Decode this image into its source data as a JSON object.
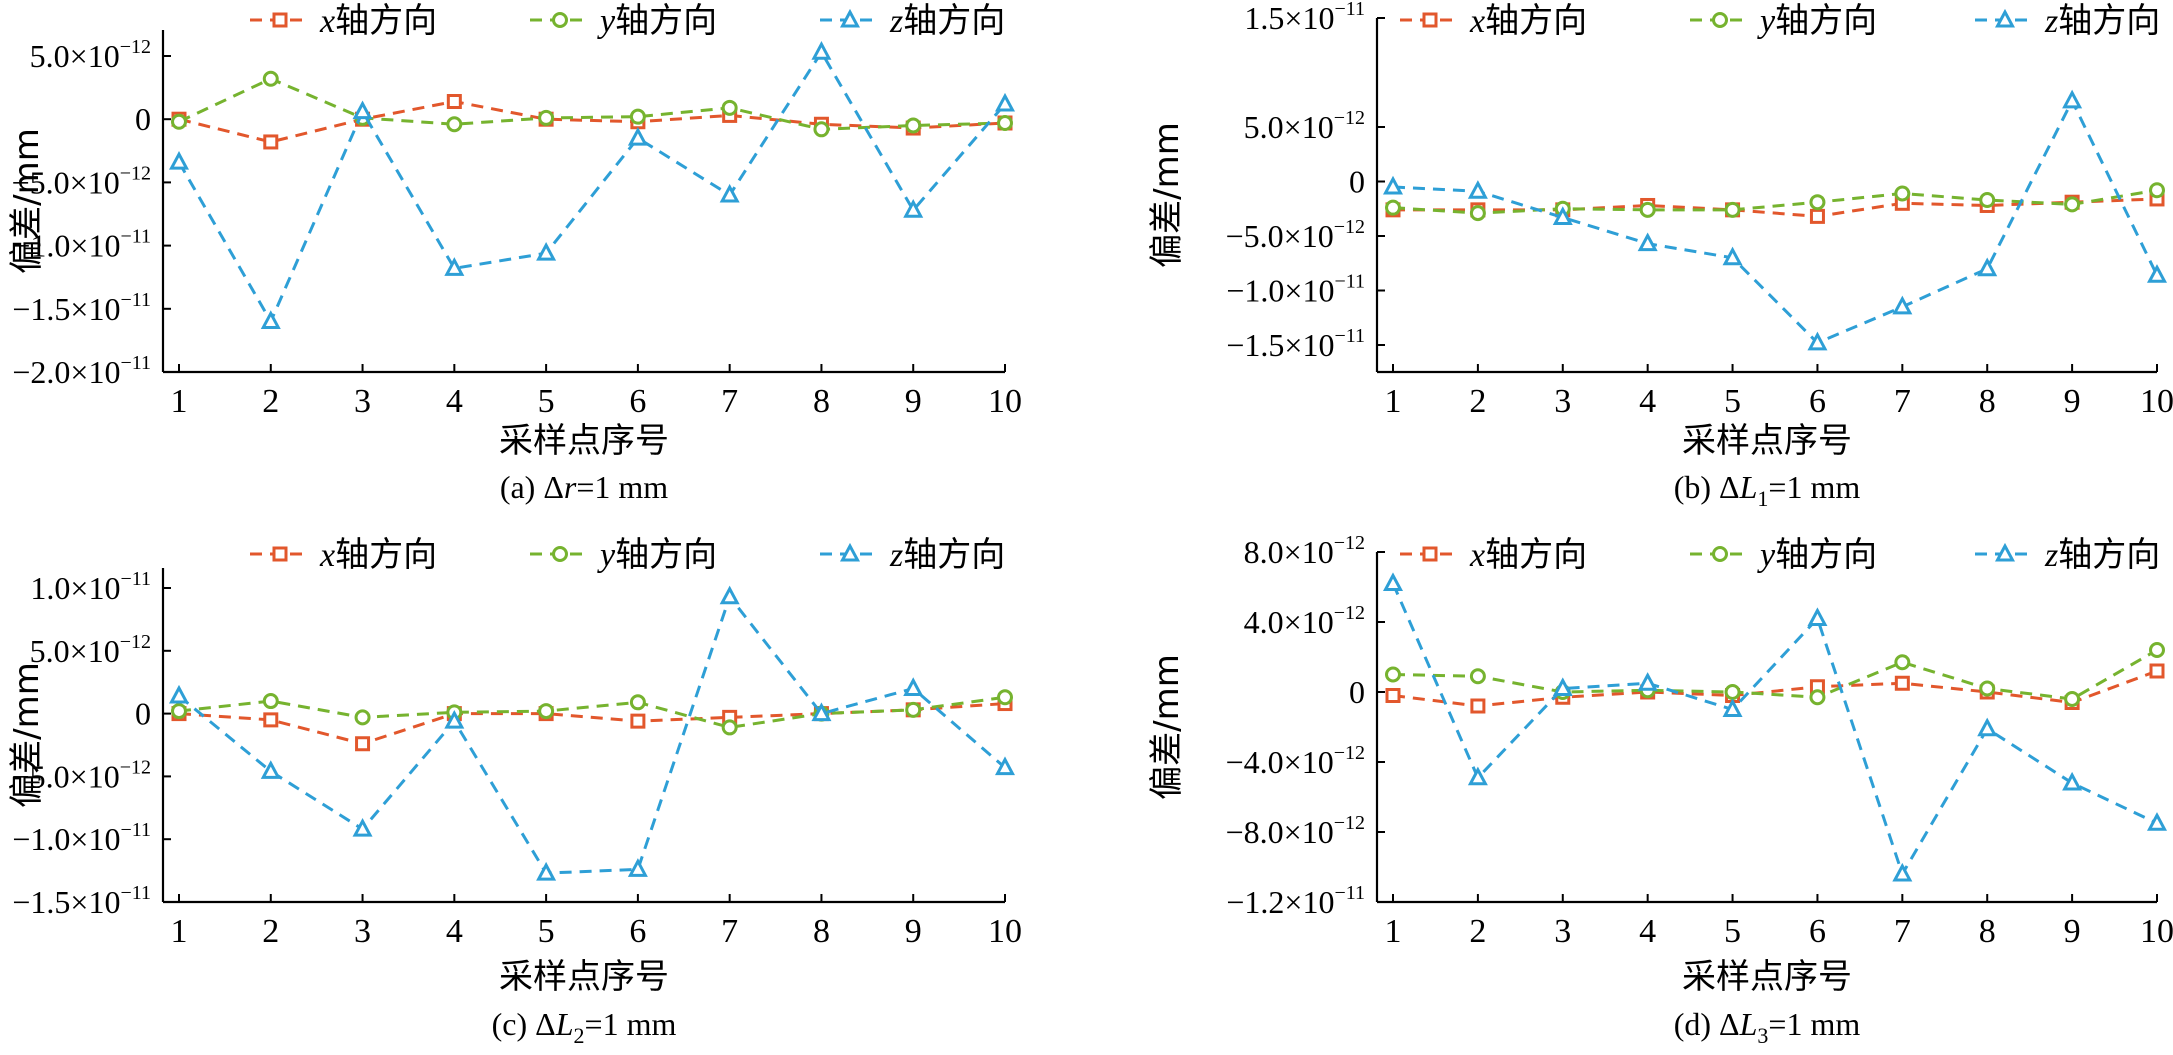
{
  "chart_data": [
    {
      "type": "line",
      "caption": "(a) Δr=1 mm",
      "xlabel": "采样点序号",
      "ylabel": "偏差/mm",
      "categories": [
        "1",
        "2",
        "3",
        "4",
        "5",
        "6",
        "7",
        "8",
        "9",
        "10"
      ],
      "yticks": [
        {
          "value": 5e-12,
          "label": "5.0×10",
          "exp": "−12"
        },
        {
          "value": 0,
          "label": "0",
          "exp": ""
        },
        {
          "value": -5e-12,
          "label": "−5.0×10",
          "exp": "−12"
        },
        {
          "value": -1e-11,
          "label": "−1.0×10",
          "exp": "−11"
        },
        {
          "value": -1.5e-11,
          "label": "−1.5×10",
          "exp": "−11"
        },
        {
          "value": -2e-11,
          "label": "−2.0×10",
          "exp": "−11"
        }
      ],
      "ylim": [
        -2e-11,
        7e-12
      ],
      "series": [
        {
          "name": "x轴方向",
          "var": "x",
          "text": "轴方向",
          "color": "#e2572c",
          "marker": "square",
          "values": [
            0,
            -1.8e-12,
            0,
            1.4e-12,
            0,
            -2e-13,
            3e-13,
            -4e-13,
            -7e-13,
            -3e-13
          ]
        },
        {
          "name": "y轴方向",
          "var": "y",
          "text": "轴方向",
          "color": "#76b32f",
          "marker": "circle",
          "values": [
            -2e-13,
            3.2e-12,
            1e-13,
            -4e-13,
            1e-13,
            2e-13,
            9e-13,
            -8e-13,
            -5e-13,
            -3e-13
          ]
        },
        {
          "name": "z轴方向",
          "var": "z",
          "text": "轴方向",
          "color": "#2e9fd6",
          "marker": "triangle",
          "values": [
            -3.4e-12,
            -1.6e-11,
            6e-13,
            -1.18e-11,
            -1.06e-11,
            -1.5e-12,
            -6e-12,
            5.3e-12,
            -7.2e-12,
            1.2e-12
          ]
        }
      ]
    },
    {
      "type": "line",
      "caption": "(b) ΔL1=1 mm",
      "xlabel": "采样点序号",
      "ylabel": "偏差/mm",
      "categories": [
        "1",
        "2",
        "3",
        "4",
        "5",
        "6",
        "7",
        "8",
        "9",
        "10"
      ],
      "yticks": [
        {
          "value": 1.5e-11,
          "label": "1.5×10",
          "exp": "−11"
        },
        {
          "value": 5e-12,
          "label": "5.0×10",
          "exp": "−12"
        },
        {
          "value": 0,
          "label": "0",
          "exp": ""
        },
        {
          "value": -5e-12,
          "label": "−5.0×10",
          "exp": "−12"
        },
        {
          "value": -1e-11,
          "label": "−1.0×10",
          "exp": "−11"
        },
        {
          "value": -1.5e-11,
          "label": "−1.5×10",
          "exp": "−11"
        }
      ],
      "ylim": [
        -1.7e-11,
        1.5e-11
      ],
      "series": [
        {
          "name": "x轴方向",
          "var": "x",
          "text": "轴方向",
          "color": "#e2572c",
          "marker": "square",
          "values": [
            -2.6e-12,
            -2.6e-12,
            -2.6e-12,
            -2.2e-12,
            -2.6e-12,
            -3.2e-12,
            -2e-12,
            -2.2e-12,
            -1.9e-12,
            -1.6e-12
          ]
        },
        {
          "name": "y轴方向",
          "var": "y",
          "text": "轴方向",
          "color": "#76b32f",
          "marker": "circle",
          "values": [
            -2.4e-12,
            -2.9e-12,
            -2.5e-12,
            -2.6e-12,
            -2.6e-12,
            -1.9e-12,
            -1.1e-12,
            -1.7e-12,
            -2.1e-12,
            -8e-13
          ]
        },
        {
          "name": "z轴方向",
          "var": "z",
          "text": "轴方向",
          "color": "#2e9fd6",
          "marker": "triangle",
          "values": [
            -5e-13,
            -9e-13,
            -3.3e-12,
            -5.7e-12,
            -7e-12,
            -1.48e-11,
            -1.15e-11,
            -8e-12,
            7.4e-12,
            -8.6e-12
          ]
        }
      ]
    },
    {
      "type": "line",
      "caption": "(c) ΔL2=1 mm",
      "xlabel": "采样点序号",
      "ylabel": "偏差/mm",
      "categories": [
        "1",
        "2",
        "3",
        "4",
        "5",
        "6",
        "7",
        "8",
        "9",
        "10"
      ],
      "yticks": [
        {
          "value": 1e-11,
          "label": "1.0×10",
          "exp": "−11"
        },
        {
          "value": 5e-12,
          "label": "5.0×10",
          "exp": "−12"
        },
        {
          "value": 0,
          "label": "0",
          "exp": ""
        },
        {
          "value": -5e-12,
          "label": "−5.0×10",
          "exp": "−12"
        },
        {
          "value": -1e-11,
          "label": "−1.0×10",
          "exp": "−11"
        },
        {
          "value": -1.5e-11,
          "label": "−1.5×10",
          "exp": "−11"
        }
      ],
      "ylim": [
        -1.5e-11,
        1.2e-11
      ],
      "series": [
        {
          "name": "x轴方向",
          "var": "x",
          "text": "轴方向",
          "color": "#e2572c",
          "marker": "square",
          "values": [
            0,
            -5e-13,
            -2.4e-12,
            0,
            0,
            -6e-13,
            -3e-13,
            0,
            3e-13,
            8e-13
          ]
        },
        {
          "name": "y轴方向",
          "var": "y",
          "text": "轴方向",
          "color": "#76b32f",
          "marker": "circle",
          "values": [
            2e-13,
            1e-12,
            -3e-13,
            1e-13,
            2e-13,
            9e-13,
            -1.1e-12,
            0,
            3e-13,
            1.3e-12
          ]
        },
        {
          "name": "z轴方向",
          "var": "z",
          "text": "轴方向",
          "color": "#2e9fd6",
          "marker": "triangle",
          "values": [
            1.4e-12,
            -4.6e-12,
            -9.2e-12,
            -6e-13,
            -1.27e-11,
            -1.24e-11,
            9.3e-12,
            0,
            2e-12,
            -4.3e-12
          ]
        }
      ]
    },
    {
      "type": "line",
      "caption": "(d) ΔL3=1 mm",
      "xlabel": "采样点序号",
      "ylabel": "偏差/mm",
      "categories": [
        "1",
        "2",
        "3",
        "4",
        "5",
        "6",
        "7",
        "8",
        "9",
        "10"
      ],
      "yticks": [
        {
          "value": 8e-12,
          "label": "8.0×10",
          "exp": "−12"
        },
        {
          "value": 4e-12,
          "label": "4.0×10",
          "exp": "−12"
        },
        {
          "value": 0,
          "label": "0",
          "exp": ""
        },
        {
          "value": -4e-12,
          "label": "−4.0×10",
          "exp": "−12"
        },
        {
          "value": -8e-12,
          "label": "−8.0×10",
          "exp": "−12"
        },
        {
          "value": -1.2e-11,
          "label": "−1.2×10",
          "exp": "−11"
        }
      ],
      "ylim": [
        -1.2e-11,
        8e-12
      ],
      "series": [
        {
          "name": "x轴方向",
          "var": "x",
          "text": "轴方向",
          "color": "#e2572c",
          "marker": "square",
          "values": [
            -2e-13,
            -8e-13,
            -3e-13,
            0,
            -2e-13,
            3e-13,
            5e-13,
            0,
            -6e-13,
            1.2e-12
          ]
        },
        {
          "name": "y轴方向",
          "var": "y",
          "text": "轴方向",
          "color": "#76b32f",
          "marker": "circle",
          "values": [
            1e-12,
            9e-13,
            0,
            1e-13,
            0,
            -3e-13,
            1.7e-12,
            2e-13,
            -4e-13,
            2.4e-12
          ]
        },
        {
          "name": "z轴方向",
          "var": "z",
          "text": "轴方向",
          "color": "#2e9fd6",
          "marker": "triangle",
          "values": [
            6.2e-12,
            -4.9e-12,
            2e-13,
            5e-13,
            -1e-12,
            4.2e-12,
            -1.04e-11,
            -2.1e-12,
            -5.2e-12,
            -7.5e-12
          ]
        }
      ]
    }
  ]
}
